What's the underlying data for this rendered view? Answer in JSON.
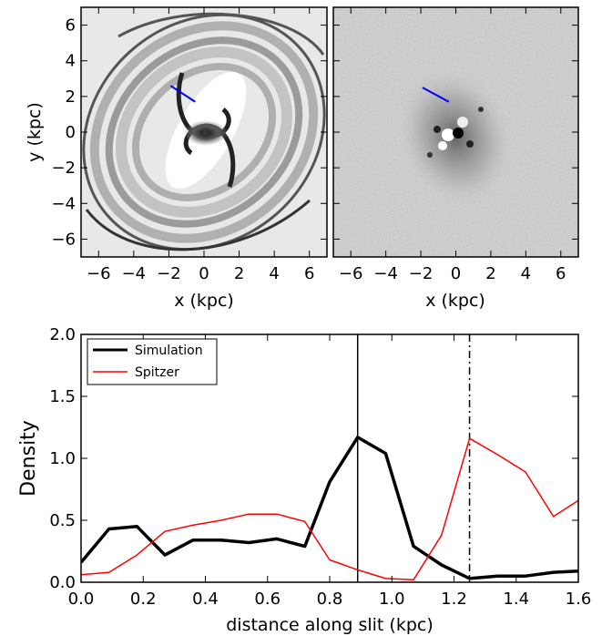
{
  "chart_data": [
    {
      "type": "image",
      "xlabel": "x (kpc)",
      "ylabel": "y (kpc)",
      "xlim": [
        -7,
        7
      ],
      "ylim": [
        -7,
        7
      ],
      "xticks": [
        -6,
        -4,
        -2,
        0,
        2,
        4,
        6
      ],
      "yticks": [
        -6,
        -4,
        -2,
        0,
        2,
        4,
        6
      ],
      "xtick_labels": [
        "−6",
        "−4",
        "−2",
        "0",
        "2",
        "4",
        "6"
      ],
      "ytick_labels": [
        "−6",
        "−4",
        "−2",
        "0",
        "2",
        "4",
        "6"
      ],
      "slit": {
        "x": [
          -1.9,
          -0.5
        ],
        "y": [
          2.6,
          1.7
        ],
        "color": "#0000ff"
      }
    },
    {
      "type": "image",
      "xlabel": "x (kpc)",
      "xlim": [
        -7,
        7
      ],
      "ylim": [
        -7,
        7
      ],
      "xticks": [
        -6,
        -4,
        -2,
        0,
        2,
        4,
        6
      ],
      "xtick_labels": [
        "−6",
        "−4",
        "−2",
        "0",
        "2",
        "4",
        "6"
      ],
      "slit": {
        "x": [
          -1.9,
          -0.4
        ],
        "y": [
          2.5,
          1.7
        ],
        "color": "#0000ff"
      }
    },
    {
      "type": "line",
      "xlabel": "distance along slit (kpc)",
      "ylabel": "Density",
      "xlim": [
        0,
        1.6
      ],
      "ylim": [
        0,
        2.0
      ],
      "xticks": [
        0,
        0.2,
        0.4,
        0.6,
        0.8,
        1.0,
        1.2,
        1.4,
        1.6
      ],
      "yticks": [
        0,
        0.5,
        1.0,
        1.5,
        2.0
      ],
      "xtick_labels": [
        "0.0",
        "0.2",
        "0.4",
        "0.6",
        "0.8",
        "1.0",
        "1.2",
        "1.4",
        "1.6"
      ],
      "ytick_labels": [
        "0.0",
        "0.5",
        "1.0",
        "1.5",
        "2.0"
      ],
      "legend_position": "top-left",
      "series": [
        {
          "name": "Simulation",
          "color": "#000000",
          "x": [
            0.0,
            0.09,
            0.18,
            0.27,
            0.36,
            0.45,
            0.54,
            0.63,
            0.72,
            0.8,
            0.89,
            0.98,
            1.07,
            1.16,
            1.25,
            1.34,
            1.43,
            1.52,
            1.6
          ],
          "y": [
            0.16,
            0.43,
            0.45,
            0.22,
            0.34,
            0.34,
            0.32,
            0.35,
            0.29,
            0.81,
            1.17,
            1.04,
            0.29,
            0.14,
            0.03,
            0.05,
            0.05,
            0.08,
            0.09
          ]
        },
        {
          "name": "Spitzer",
          "color": "#ff0000",
          "x": [
            0.0,
            0.09,
            0.18,
            0.27,
            0.36,
            0.45,
            0.54,
            0.63,
            0.72,
            0.8,
            0.89,
            0.98,
            1.07,
            1.16,
            1.25,
            1.34,
            1.43,
            1.52,
            1.6
          ],
          "y": [
            0.06,
            0.08,
            0.22,
            0.41,
            0.46,
            0.5,
            0.55,
            0.55,
            0.49,
            0.18,
            0.1,
            0.03,
            0.02,
            0.38,
            1.16,
            1.03,
            0.89,
            0.53,
            0.66
          ]
        }
      ],
      "vlines": [
        {
          "x": 0.89,
          "style": "solid"
        },
        {
          "x": 1.25,
          "style": "dashdot"
        }
      ]
    }
  ]
}
